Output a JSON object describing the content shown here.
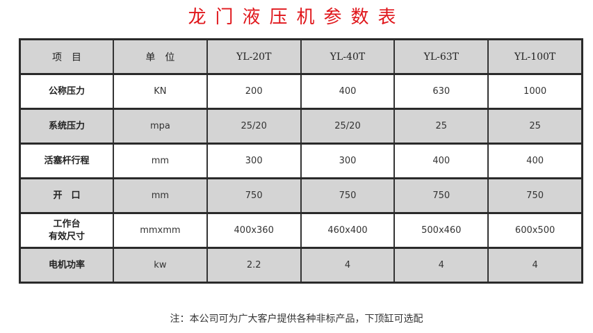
{
  "title": "龙门液压机参数表",
  "header": [
    "项　目",
    "单　位",
    "YL-20T",
    "YL-40T",
    "YL-63T",
    "YL-100T"
  ],
  "rows": [
    {
      "label": "公称压力",
      "unit": "KN",
      "values": [
        "200",
        "400",
        "630",
        "1000"
      ]
    },
    {
      "label": "系统压力",
      "unit": "mpa",
      "values": [
        "25/20",
        "25/20",
        "25",
        "25"
      ]
    },
    {
      "label": "活塞杆行程",
      "unit": "mm",
      "values": [
        "300",
        "300",
        "400",
        "400"
      ]
    },
    {
      "label": "开　口",
      "unit": "mm",
      "values": [
        "750",
        "750",
        "750",
        "750"
      ]
    },
    {
      "label": "工作台\n有效尺寸",
      "unit": "mmxmm",
      "values": [
        "400x360",
        "460x400",
        "500x460",
        "600x500"
      ]
    },
    {
      "label": "电机功率",
      "unit": "kw",
      "values": [
        "2.2",
        "4",
        "4",
        "4"
      ]
    }
  ],
  "note": "注：本公司可为广大客户提供各种非标产品，下顶缸可选配",
  "colors": {
    "title": "#e0161b",
    "shaded_row": "#d4d4d4"
  }
}
